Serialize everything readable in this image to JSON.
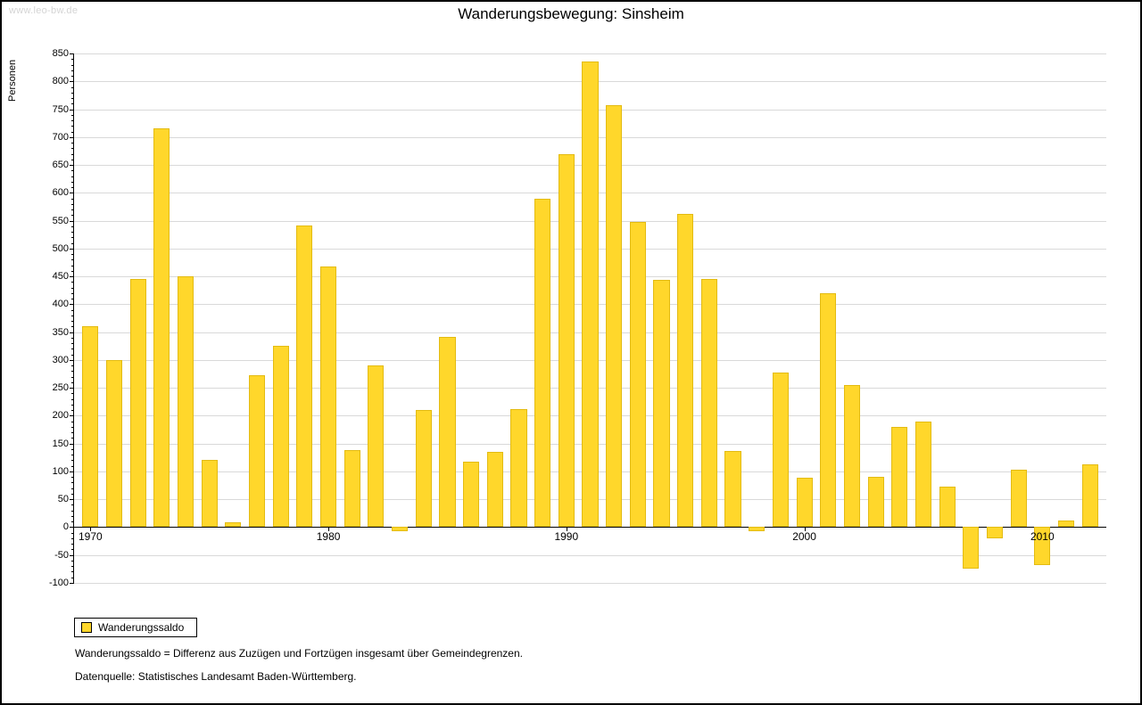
{
  "watermark": "www.leo-bw.de",
  "title": "Wanderungsbewegung: Sinsheim",
  "legend": {
    "label": "Wanderungssaldo"
  },
  "footnotes": [
    "Wanderungssaldo = Differenz aus Zuzügen und Fortzügen insgesamt über Gemeindegrenzen.",
    "Datenquelle: Statistisches Landesamt Baden-Württemberg."
  ],
  "chart_data": {
    "type": "bar",
    "title": "Wanderungsbewegung: Sinsheim",
    "xlabel": "",
    "ylabel": "Personen",
    "ylim": [
      -100,
      850
    ],
    "ytick_step": 50,
    "ytick_minor_step": 10,
    "xticks": [
      1970,
      1980,
      1990,
      2000,
      2010
    ],
    "grid": true,
    "legend_position": "bottom-left",
    "bar_color": "#FFD72B",
    "bar_border_color": "#e3bb12",
    "grid_color": "#d9d9d9",
    "series": [
      {
        "name": "Wanderungssaldo",
        "x": [
          1970,
          1971,
          1972,
          1973,
          1974,
          1975,
          1976,
          1977,
          1978,
          1979,
          1980,
          1981,
          1982,
          1983,
          1984,
          1985,
          1986,
          1987,
          1988,
          1989,
          1990,
          1991,
          1992,
          1993,
          1994,
          1995,
          1996,
          1997,
          1998,
          1999,
          2000,
          2001,
          2002,
          2003,
          2004,
          2005,
          2006,
          2007,
          2008,
          2009,
          2010,
          2011,
          2012
        ],
        "values": [
          360,
          300,
          445,
          715,
          450,
          120,
          8,
          272,
          325,
          542,
          468,
          138,
          290,
          -8,
          210,
          342,
          118,
          135,
          212,
          590,
          670,
          835,
          758,
          548,
          443,
          562,
          445,
          137,
          -8,
          278,
          88,
          420,
          255,
          90,
          180,
          190,
          72,
          -75,
          -20,
          103,
          -68,
          12,
          112
        ]
      }
    ]
  }
}
